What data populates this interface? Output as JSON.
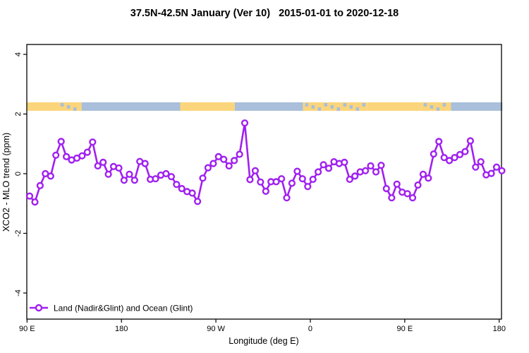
{
  "title": "37.5N-42.5N January (Ver 10)   2015-01-01 to 2020-12-18",
  "chart_data": {
    "type": "line",
    "title": "37.5N-42.5N January (Ver 10)   2015-01-01 to 2020-12-18",
    "xlabel": "Longitude (deg E)",
    "ylabel": "XCO2 - MLO trend (ppm)",
    "xlim": [
      90,
      543
    ],
    "ylim": [
      -4.6,
      4.35
    ],
    "grid": false,
    "x_ticks": [
      {
        "deg": 90,
        "label": "90 E"
      },
      {
        "deg": 180,
        "label": "180"
      },
      {
        "deg": 270,
        "label": "90 W"
      },
      {
        "deg": 360,
        "label": "0"
      },
      {
        "deg": 450,
        "label": "90 E"
      },
      {
        "deg": 540,
        "label": "180"
      }
    ],
    "y_ticks": [
      {
        "value": -4,
        "label": "-4"
      },
      {
        "value": -2,
        "label": "-2"
      },
      {
        "value": 0,
        "label": "0"
      },
      {
        "value": 2,
        "label": "2"
      },
      {
        "value": 4,
        "label": "4"
      }
    ],
    "legend": {
      "label": "Land (Nadir&Glint) and Ocean (Glint)",
      "position": "bottom-left",
      "marker": "open-circle",
      "color": "#A020F0"
    },
    "series": [
      {
        "name": "Land (Nadir&Glint) and Ocean (Glint)",
        "color": "#A020F0",
        "marker": "open-circle",
        "x": [
          92.5,
          97.5,
          102.5,
          107.5,
          112.5,
          117.5,
          122.5,
          127.5,
          132.5,
          137.5,
          142.5,
          147.5,
          152.5,
          157.5,
          162.5,
          167.5,
          172.5,
          177.5,
          182.5,
          187.5,
          192.5,
          197.5,
          202.5,
          207.5,
          212.5,
          217.5,
          222.5,
          227.5,
          232.5,
          237.5,
          242.5,
          247.5,
          252.5,
          257.5,
          262.5,
          267.5,
          272.5,
          277.5,
          282.5,
          287.5,
          292.5,
          297.5,
          302.5,
          307.5,
          312.5,
          317.5,
          322.5,
          327.5,
          332.5,
          337.5,
          342.5,
          347.5,
          352.5,
          357.5,
          362.5,
          367.5,
          372.5,
          377.5,
          382.5,
          387.5,
          392.5,
          397.5,
          402.5,
          407.5,
          412.5,
          417.5,
          422.5,
          427.5,
          432.5,
          437.5,
          442.5,
          447.5,
          452.5,
          457.5,
          462.5,
          467.5,
          472.5,
          477.5,
          482.5,
          487.5,
          492.5,
          497.5,
          502.5,
          507.5,
          512.5,
          517.5,
          522.5,
          527.5,
          532.5,
          537.5,
          542.5
        ],
        "y": [
          -0.75,
          -0.95,
          -0.4,
          0.0,
          -0.08,
          0.62,
          1.08,
          0.57,
          0.46,
          0.52,
          0.6,
          0.72,
          1.06,
          0.26,
          0.38,
          -0.02,
          0.24,
          0.19,
          -0.22,
          -0.02,
          -0.22,
          0.41,
          0.34,
          -0.19,
          -0.17,
          -0.05,
          0.0,
          -0.1,
          -0.36,
          -0.5,
          -0.6,
          -0.65,
          -0.93,
          -0.15,
          0.2,
          0.34,
          0.57,
          0.48,
          0.26,
          0.44,
          0.65,
          1.7,
          -0.2,
          0.1,
          -0.28,
          -0.59,
          -0.27,
          -0.27,
          -0.17,
          -0.81,
          -0.32,
          0.08,
          -0.17,
          -0.43,
          -0.19,
          0.06,
          0.3,
          0.18,
          0.4,
          0.34,
          0.38,
          -0.19,
          -0.08,
          0.06,
          0.1,
          0.26,
          0.06,
          0.28,
          -0.5,
          -0.81,
          -0.35,
          -0.62,
          -0.67,
          -0.81,
          -0.38,
          -0.02,
          -0.15,
          0.66,
          1.08,
          0.54,
          0.44,
          0.54,
          0.64,
          0.74,
          1.1,
          0.22,
          0.4,
          -0.04,
          0.01,
          0.22,
          0.1
        ]
      }
    ],
    "map_band": {
      "description": "land/ocean strip along longitude",
      "center_value": 2.25,
      "land_color": "#FBD57B",
      "ocean_color": "#A9BFDB",
      "segments": [
        {
          "from": 90,
          "to": 120,
          "type": "land"
        },
        {
          "from": 120,
          "to": 142,
          "type": "mixed"
        },
        {
          "from": 142,
          "to": 236,
          "type": "ocean"
        },
        {
          "from": 236,
          "to": 288,
          "type": "land"
        },
        {
          "from": 288,
          "to": 353,
          "type": "ocean"
        },
        {
          "from": 353,
          "to": 414,
          "type": "mixed"
        },
        {
          "from": 414,
          "to": 466,
          "type": "land"
        },
        {
          "from": 466,
          "to": 494,
          "type": "mixed"
        },
        {
          "from": 494,
          "to": 543,
          "type": "ocean"
        }
      ]
    },
    "colors": {
      "line": "#A020F0",
      "axis": "#000000",
      "background": "#ffffff"
    }
  }
}
